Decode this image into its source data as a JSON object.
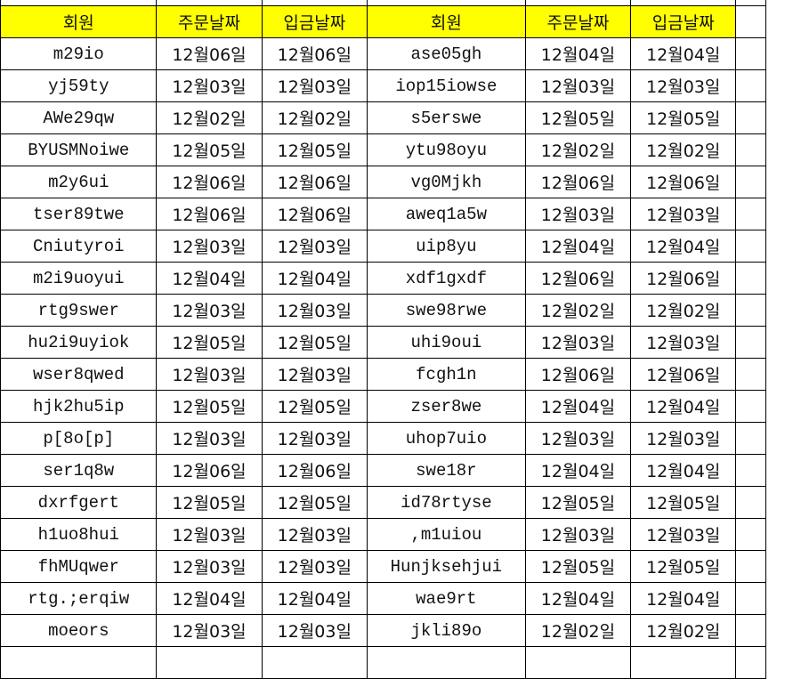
{
  "header": {
    "member": "회원",
    "order_date": "주문날짜",
    "deposit_date": "입금날짜"
  },
  "colors": {
    "header_bg": "#ffff00",
    "grid": "#000000"
  },
  "left_rows": [
    [
      "m29io",
      "12월06일",
      "12월06일"
    ],
    [
      "yj59ty",
      "12월03일",
      "12월03일"
    ],
    [
      "AWe29qw",
      "12월02일",
      "12월02일"
    ],
    [
      "BYUSMNoiwe",
      "12월05일",
      "12월05일"
    ],
    [
      "m2y6ui",
      "12월06일",
      "12월06일"
    ],
    [
      "tser89twe",
      "12월06일",
      "12월06일"
    ],
    [
      "Cniutyroi",
      "12월03일",
      "12월03일"
    ],
    [
      "m2i9uoyui",
      "12월04일",
      "12월04일"
    ],
    [
      "rtg9swer",
      "12월03일",
      "12월03일"
    ],
    [
      "hu2i9uyiok",
      "12월05일",
      "12월05일"
    ],
    [
      "wser8qwed",
      "12월03일",
      "12월03일"
    ],
    [
      "hjk2hu5ip",
      "12월05일",
      "12월05일"
    ],
    [
      "p[8o[p]",
      "12월03일",
      "12월03일"
    ],
    [
      "ser1q8w",
      "12월06일",
      "12월06일"
    ],
    [
      "dxrfgert",
      "12월05일",
      "12월05일"
    ],
    [
      "h1uo8hui",
      "12월03일",
      "12월03일"
    ],
    [
      "fhMUqwer",
      "12월03일",
      "12월03일"
    ],
    [
      "rtg.;erqiw",
      "12월04일",
      "12월04일"
    ],
    [
      "moeors",
      "12월03일",
      "12월03일"
    ]
  ],
  "right_rows": [
    [
      "ase05gh",
      "12월04일",
      "12월04일"
    ],
    [
      "iop15iowse",
      "12월03일",
      "12월03일"
    ],
    [
      "s5erswe",
      "12월05일",
      "12월05일"
    ],
    [
      "ytu98oyu",
      "12월02일",
      "12월02일"
    ],
    [
      "vg0Mjkh",
      "12월06일",
      "12월06일"
    ],
    [
      "aweq1a5w",
      "12월03일",
      "12월03일"
    ],
    [
      "uip8yu",
      "12월04일",
      "12월04일"
    ],
    [
      "xdf1gxdf",
      "12월06일",
      "12월06일"
    ],
    [
      "swe98rwe",
      "12월02일",
      "12월02일"
    ],
    [
      "uhi9oui",
      "12월03일",
      "12월03일"
    ],
    [
      "fcgh1n",
      "12월06일",
      "12월06일"
    ],
    [
      "zser8we",
      "12월04일",
      "12월04일"
    ],
    [
      "uhop7uio",
      "12월03일",
      "12월03일"
    ],
    [
      "swe18r",
      "12월04일",
      "12월04일"
    ],
    [
      "id78rtyse",
      "12월05일",
      "12월05일"
    ],
    [
      ",m1uiou",
      "12월03일",
      "12월03일"
    ],
    [
      "Hunjksehjui",
      "12월05일",
      "12월05일"
    ],
    [
      "wae9rt",
      "12월04일",
      "12월04일"
    ],
    [
      "jkli89o",
      "12월02일",
      "12월02일"
    ]
  ]
}
